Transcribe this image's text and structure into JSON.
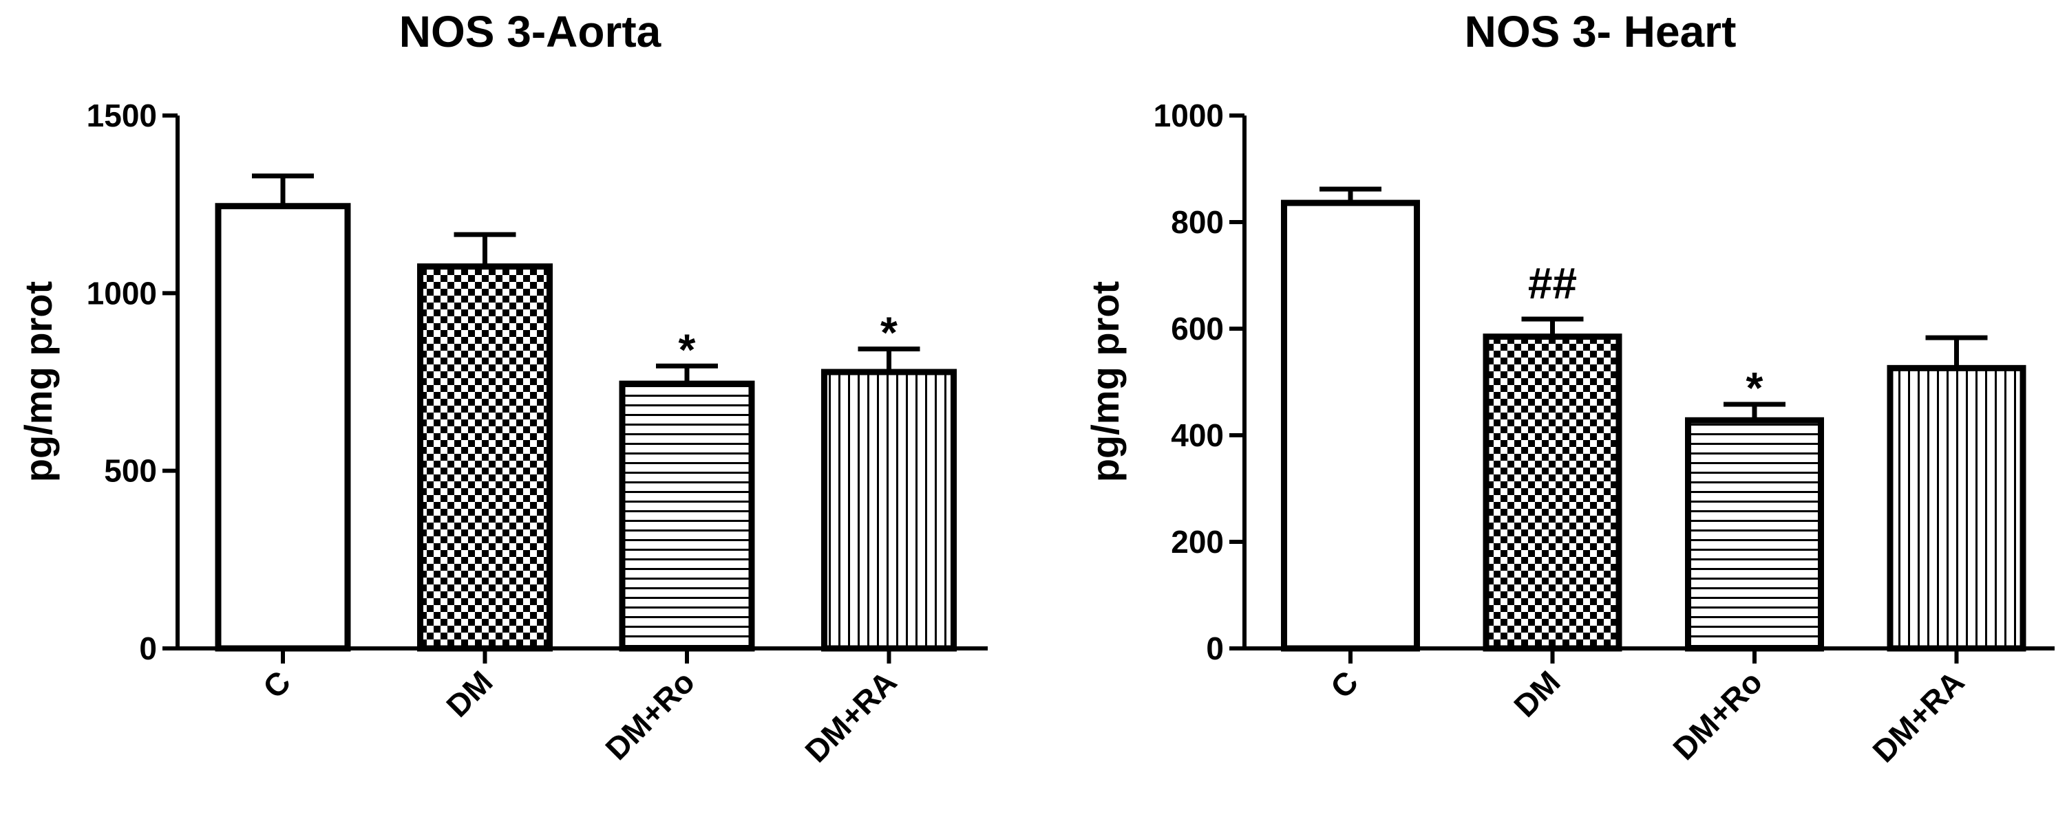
{
  "chart_data": [
    {
      "type": "bar",
      "title": "NOS 3-Aorta",
      "xlabel": "",
      "ylabel": "pg/mg prot",
      "ylim": [
        0,
        1500
      ],
      "yticks": [
        0,
        500,
        1000,
        1500
      ],
      "categories": [
        "C",
        "DM",
        "DM+Ro",
        "DM+RA"
      ],
      "values": [
        1245,
        1075,
        745,
        778
      ],
      "errors": [
        85,
        90,
        50,
        65
      ],
      "patterns": [
        "empty",
        "checker",
        "horizontal",
        "vertical"
      ],
      "annotations": [
        "",
        "",
        "*",
        "*"
      ]
    },
    {
      "type": "bar",
      "title": "NOS 3- Heart",
      "xlabel": "",
      "ylabel": "pg/mg prot",
      "ylim": [
        0,
        1000
      ],
      "yticks": [
        0,
        200,
        400,
        600,
        800,
        1000
      ],
      "categories": [
        "C",
        "DM",
        "DM+Ro",
        "DM+RA"
      ],
      "values": [
        836,
        585,
        428,
        526
      ],
      "errors": [
        26,
        33,
        30,
        57
      ],
      "patterns": [
        "empty",
        "checker",
        "horizontal",
        "vertical"
      ],
      "annotations": [
        "",
        "##",
        "*",
        ""
      ]
    }
  ]
}
